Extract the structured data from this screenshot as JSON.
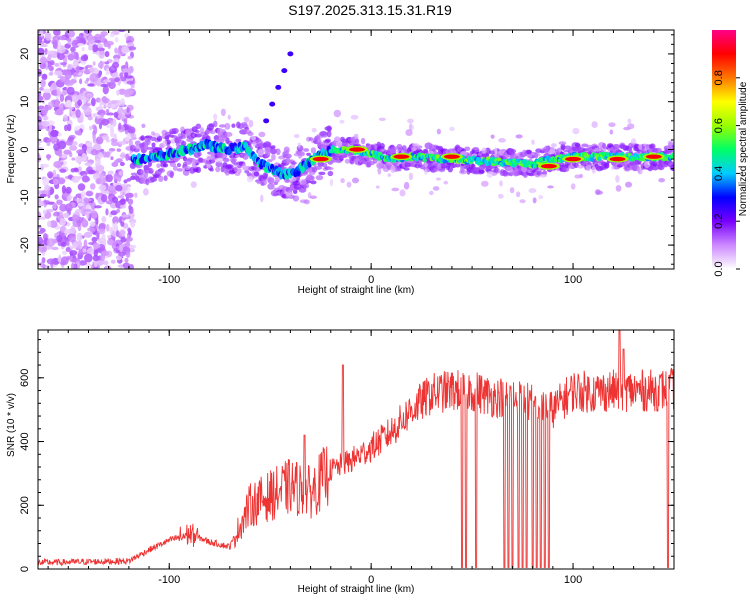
{
  "title": "S197.2025.313.15.31.R19",
  "chart_data": [
    {
      "type": "heatmap",
      "xlabel": "Height of straight line (km)",
      "ylabel": "Frequency (Hz)",
      "xlim": [
        -165,
        150
      ],
      "ylim": [
        -25,
        25
      ],
      "xticks": [
        -100,
        0,
        100
      ],
      "yticks": [
        -20,
        -10,
        0,
        10,
        20
      ],
      "colorbar": {
        "label": "Normalized spectral amplitude",
        "ticks": [
          0.0,
          0.2,
          0.4,
          0.6,
          0.8
        ],
        "range": [
          0,
          1
        ],
        "colors": [
          "#ffffff",
          "#cc88ff",
          "#7700ff",
          "#0000ff",
          "#00ccff",
          "#00ff66",
          "#99ff00",
          "#ffff00",
          "#ff7700",
          "#ff0000",
          "#ff0088"
        ]
      },
      "ridge": {
        "description_free_points": [
          [
            -117,
            -2
          ],
          [
            -110,
            -2
          ],
          [
            -100,
            -1
          ],
          [
            -90,
            0
          ],
          [
            -82,
            1
          ],
          [
            -72,
            0
          ],
          [
            -62,
            0.5
          ],
          [
            -55,
            -3
          ],
          [
            -45,
            -5
          ],
          [
            -38,
            -5
          ],
          [
            -32,
            -3
          ],
          [
            -25,
            -1
          ],
          [
            -18,
            0
          ],
          [
            -10,
            0
          ],
          [
            0,
            -1
          ],
          [
            10,
            -2
          ],
          [
            20,
            -1.5
          ],
          [
            40,
            -2
          ],
          [
            60,
            -2.5
          ],
          [
            80,
            -3
          ],
          [
            90,
            -2
          ],
          [
            100,
            -1.5
          ],
          [
            120,
            -1.5
          ],
          [
            140,
            -1.5
          ],
          [
            150,
            -1.5
          ]
        ],
        "peaks": [
          [
            15,
            -1.5
          ],
          [
            40,
            -1.5
          ],
          [
            -25,
            -2
          ],
          [
            -7,
            0
          ],
          [
            100,
            -2
          ],
          [
            140,
            -1.5
          ],
          [
            122,
            -2
          ],
          [
            88,
            -3.5
          ]
        ]
      }
    },
    {
      "type": "line",
      "xlabel": "Height of straight line (km)",
      "ylabel": "SNR (10 * v/v)",
      "xlim": [
        -165,
        150
      ],
      "ylim": [
        0,
        750
      ],
      "xticks": [
        -100,
        0,
        100
      ],
      "yticks": [
        0,
        200,
        400,
        600
      ],
      "color": "#ee3333",
      "envelope": [
        [
          -165,
          20
        ],
        [
          -120,
          25
        ],
        [
          -110,
          60
        ],
        [
          -100,
          90
        ],
        [
          -90,
          110
        ],
        [
          -80,
          85
        ],
        [
          -70,
          70
        ],
        [
          -60,
          200
        ],
        [
          -50,
          230
        ],
        [
          -40,
          260
        ],
        [
          -30,
          240
        ],
        [
          -20,
          310
        ],
        [
          -10,
          340
        ],
        [
          0,
          380
        ],
        [
          10,
          430
        ],
        [
          20,
          500
        ],
        [
          30,
          550
        ],
        [
          40,
          560
        ],
        [
          50,
          560
        ],
        [
          60,
          540
        ],
        [
          70,
          540
        ],
        [
          80,
          520
        ],
        [
          90,
          500
        ],
        [
          100,
          560
        ],
        [
          110,
          555
        ],
        [
          120,
          560
        ],
        [
          130,
          560
        ],
        [
          140,
          560
        ],
        [
          150,
          565
        ]
      ],
      "dropouts": [
        45,
        47,
        52,
        66,
        68,
        70,
        73,
        75,
        77,
        80,
        82,
        84,
        86,
        88,
        147
      ],
      "spikes": [
        [
          -14,
          640
        ],
        [
          123,
          750
        ],
        [
          125,
          690
        ],
        [
          -33,
          420
        ]
      ]
    }
  ]
}
